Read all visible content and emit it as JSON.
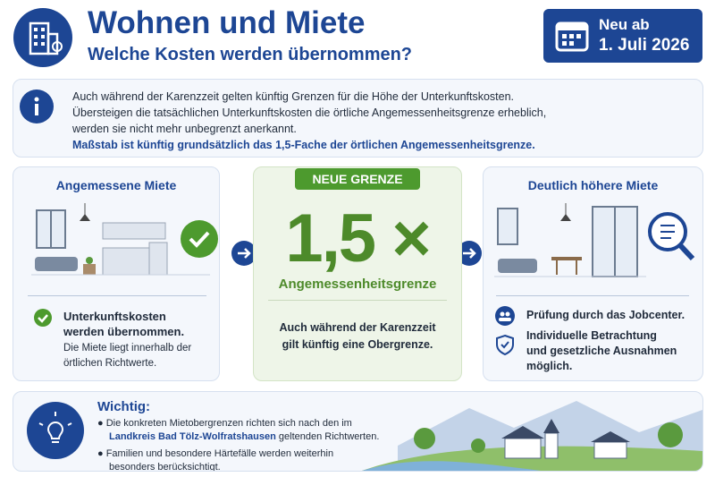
{
  "header": {
    "title": "Wohnen und Miete",
    "subtitle": "Welche Kosten werden übernommen?"
  },
  "badge": {
    "label": "Neu ab",
    "date": "1. Juli 2026"
  },
  "info": {
    "lines": [
      "Auch während der Karenzzeit gelten künftig Grenzen für die Höhe der Unterkunftskosten.",
      "Übersteigen die tatsächlichen Unterkunftskosten die örtliche Angemessenheitsgrenze erheblich,",
      "werden sie nicht mehr unbegrenzt anerkannt."
    ],
    "highlight": "Maßstab ist künftig grundsätzlich das 1,5-Fache der örtlichen Angemessenheitsgrenze."
  },
  "left_card": {
    "title": "Angemessene Miete",
    "check_lines": [
      "Unterkunftskosten",
      "werden übernommen."
    ],
    "note_lines": [
      "Die Miete liegt innerhalb der",
      "örtlichen Richtwerte."
    ]
  },
  "middle_card": {
    "badge": "NEUE GRENZE",
    "factor": "1,5 ×",
    "label": "Angemessenheitsgrenze",
    "text_lines": [
      "Auch während der Karenzzeit",
      "gilt künftig eine Obergrenze."
    ]
  },
  "right_card": {
    "title": "Deutlich höhere Miete",
    "items": [
      [
        "Prüfung durch das Jobcenter."
      ],
      [
        "Individuelle Betrachtung",
        "und gesetzliche Ausnahmen",
        "möglich."
      ]
    ]
  },
  "important": {
    "title": "Wichtig:",
    "bullets": [
      [
        "Die konkreten Mietobergrenzen richten sich nach den im",
        "Landkreis Bad Tölz-Wolfratshausen",
        "geltenden Richtwerten."
      ],
      [
        "Familien und besondere Härtefälle werden weiterhin",
        "besonders berücksichtigt."
      ]
    ]
  }
}
